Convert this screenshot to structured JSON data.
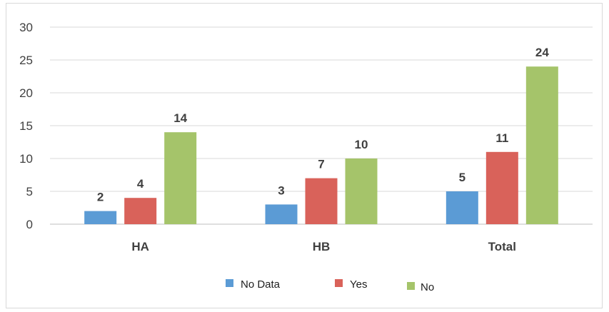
{
  "chart_data": {
    "type": "bar",
    "categories": [
      "HA",
      "HB",
      "Total"
    ],
    "series": [
      {
        "name": "No Data",
        "values": [
          2,
          3,
          5
        ],
        "color": "#5b9bd5"
      },
      {
        "name": "Yes",
        "values": [
          4,
          7,
          11
        ],
        "color": "#d9625a"
      },
      {
        "name": "No",
        "values": [
          14,
          10,
          24
        ],
        "color": "#a5c46a"
      }
    ],
    "ylim": [
      0,
      30
    ],
    "yticks": [
      0,
      5,
      10,
      15,
      20,
      25,
      30
    ],
    "grid": true,
    "legend_position": "bottom",
    "data_labels": true
  }
}
